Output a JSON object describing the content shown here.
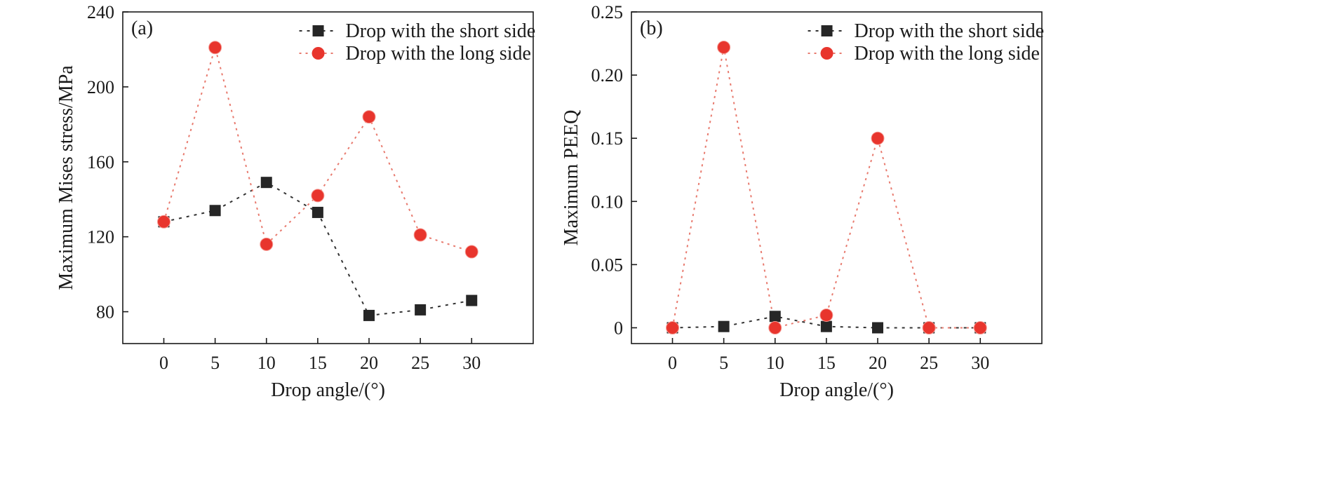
{
  "chart_data": [
    {
      "type": "line",
      "panel_label": "(a)",
      "xlabel": "Drop angle/(°)",
      "ylabel": "Maximum Mises stress/MPa",
      "x": [
        0,
        5,
        10,
        15,
        20,
        25,
        30
      ],
      "xticks": [
        "0",
        "5",
        "10",
        "15",
        "20",
        "25",
        "30"
      ],
      "yticks": [
        "80",
        "120",
        "160",
        "200",
        "240"
      ],
      "xlim": [
        -4,
        36
      ],
      "ylim": [
        63,
        240
      ],
      "legend_position": "top-right",
      "series": [
        {
          "name": "Drop with the short side",
          "marker": "square",
          "color": "#262626",
          "values": [
            128,
            134,
            149,
            133,
            78,
            81,
            86
          ]
        },
        {
          "name": "Drop with the long side",
          "marker": "circle",
          "color": "#e8352d",
          "values": [
            128,
            221,
            116,
            142,
            184,
            121,
            112
          ]
        }
      ]
    },
    {
      "type": "line",
      "panel_label": "(b)",
      "xlabel": "Drop angle/(°)",
      "ylabel": "Maximum PEEQ",
      "x": [
        0,
        5,
        10,
        15,
        20,
        25,
        30
      ],
      "xticks": [
        "0",
        "5",
        "10",
        "15",
        "20",
        "25",
        "30"
      ],
      "yticks": [
        "0",
        "0.05",
        "0.10",
        "0.15",
        "0.20",
        "0.25"
      ],
      "xlim": [
        -4,
        36
      ],
      "ylim": [
        -0.0125,
        0.25
      ],
      "legend_position": "top-right",
      "series": [
        {
          "name": "Drop with the short side",
          "marker": "square",
          "color": "#262626",
          "values": [
            0,
            0.001,
            0.009,
            0.001,
            0,
            0,
            0
          ]
        },
        {
          "name": "Drop with the long side",
          "marker": "circle",
          "color": "#e8352d",
          "values": [
            0,
            0.222,
            0,
            0.01,
            0.15,
            0,
            0
          ]
        }
      ]
    }
  ]
}
